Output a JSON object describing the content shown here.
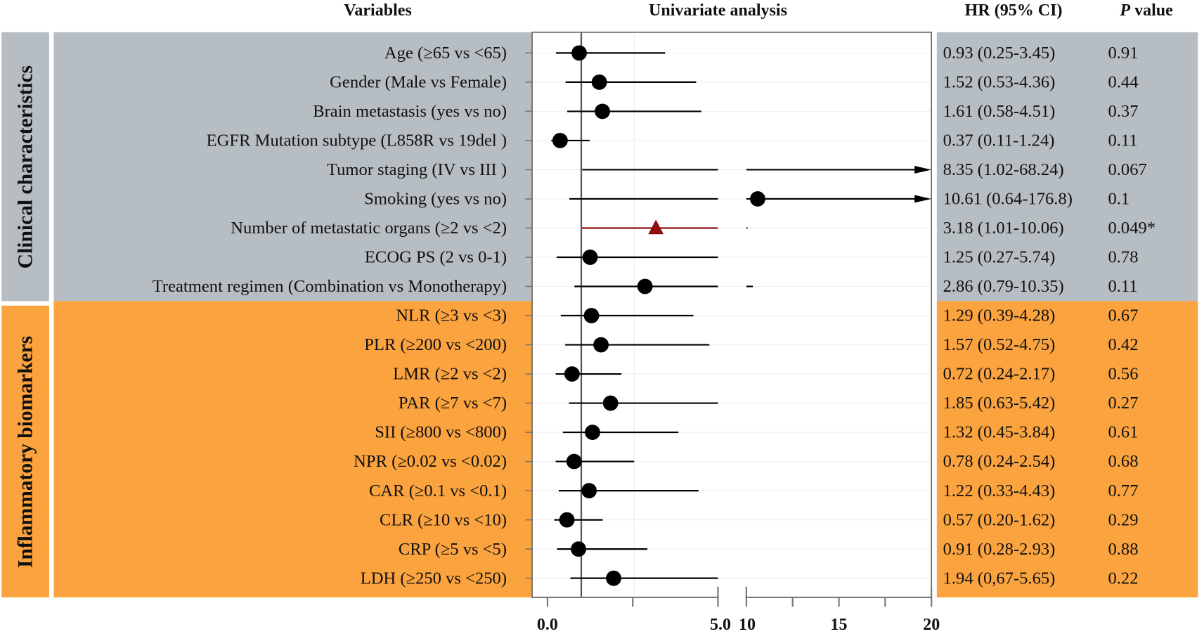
{
  "headers": {
    "variables": "Variables",
    "analysis": "Univariate analysis",
    "hr": "HR (95% CI)",
    "p_italic": "P",
    "p_rest": " value"
  },
  "groups": [
    {
      "name": "Clinical characteristics",
      "color": "#b7bec3"
    },
    {
      "name": "Inflammatory biomarkers",
      "color": "#fba33f"
    }
  ],
  "colors": {
    "point": "#000000",
    "significant": "#8b0f0f",
    "refline": "#555555"
  },
  "chart_data": {
    "type": "forest",
    "title": "Univariate analysis",
    "reference_line": 1,
    "x_axis": {
      "segments": [
        [
          0,
          5
        ],
        [
          10,
          20
        ]
      ],
      "tick_labels": [
        "0.0",
        "5.0",
        "10",
        "15",
        "20"
      ],
      "ticks": [
        0,
        2.5,
        5,
        10,
        12.5,
        15,
        17.5,
        20
      ]
    },
    "rows": [
      {
        "group": 0,
        "label": "Age (≥65 vs <65)",
        "hr": 0.93,
        "lo": 0.25,
        "hi": 3.45,
        "hr_text": "0.93 (0.25-3.45)",
        "p": "0.91",
        "marker": "circle"
      },
      {
        "group": 0,
        "label": "Gender (Male vs Female)",
        "hr": 1.52,
        "lo": 0.53,
        "hi": 4.36,
        "hr_text": "1.52 (0.53-4.36)",
        "p": "0.44",
        "marker": "circle"
      },
      {
        "group": 0,
        "label": "Brain metastasis (yes vs no)",
        "hr": 1.61,
        "lo": 0.58,
        "hi": 4.51,
        "hr_text": "1.61 (0.58-4.51)",
        "p": "0.37",
        "marker": "circle"
      },
      {
        "group": 0,
        "label": "EGFR Mutation subtype (L858R vs 19del )",
        "hr": 0.37,
        "lo": 0.11,
        "hi": 1.24,
        "hr_text": "0.37 (0.11-1.24)",
        "p": "0.11",
        "marker": "circle"
      },
      {
        "group": 0,
        "label": "Tumor staging (IV vs III )",
        "hr": 8.35,
        "lo": 1.02,
        "hi": 68.24,
        "hr_text": "8.35 (1.02-68.24)",
        "p": "0.067",
        "marker": "circle"
      },
      {
        "group": 0,
        "label": "Smoking (yes vs no)",
        "hr": 10.61,
        "lo": 0.64,
        "hi": 176.8,
        "hr_text": "10.61 (0.64-176.8)",
        "p": "0.1",
        "marker": "circle"
      },
      {
        "group": 0,
        "label": "Number of metastatic organs (≥2 vs <2)",
        "hr": 3.18,
        "lo": 1.01,
        "hi": 10.06,
        "hr_text": "3.18 (1.01-10.06)",
        "p": "0.049*",
        "marker": "triangle"
      },
      {
        "group": 0,
        "label": "ECOG PS (2 vs 0-1)",
        "hr": 1.25,
        "lo": 0.27,
        "hi": 5.74,
        "hr_text": "1.25 (0.27-5.74)",
        "p": "0.78",
        "marker": "circle"
      },
      {
        "group": 0,
        "label": "Treatment regimen (Combination vs Monotherapy)",
        "hr": 2.86,
        "lo": 0.79,
        "hi": 10.35,
        "hr_text": "2.86 (0.79-10.35)",
        "p": "0.11",
        "marker": "circle"
      },
      {
        "group": 1,
        "label": "NLR (≥3 vs <3)",
        "hr": 1.29,
        "lo": 0.39,
        "hi": 4.28,
        "hr_text": "1.29 (0.39-4.28)",
        "p": "0.67",
        "marker": "circle"
      },
      {
        "group": 1,
        "label": "PLR (≥200 vs <200)",
        "hr": 1.57,
        "lo": 0.52,
        "hi": 4.75,
        "hr_text": "1.57 (0.52-4.75)",
        "p": "0.42",
        "marker": "circle"
      },
      {
        "group": 1,
        "label": "LMR (≥2 vs <2)",
        "hr": 0.72,
        "lo": 0.24,
        "hi": 2.17,
        "hr_text": "0.72 (0.24-2.17)",
        "p": "0.56",
        "marker": "circle"
      },
      {
        "group": 1,
        "label": "PAR (≥7 vs <7)",
        "hr": 1.85,
        "lo": 0.63,
        "hi": 5.42,
        "hr_text": "1.85 (0.63-5.42)",
        "p": "0.27",
        "marker": "circle"
      },
      {
        "group": 1,
        "label": "SII (≥800 vs <800)",
        "hr": 1.32,
        "lo": 0.45,
        "hi": 3.84,
        "hr_text": "1.32 (0.45-3.84)",
        "p": "0.61",
        "marker": "circle"
      },
      {
        "group": 1,
        "label": "NPR (≥0.02 vs <0.02)",
        "hr": 0.78,
        "lo": 0.24,
        "hi": 2.54,
        "hr_text": "0.78 (0.24-2.54)",
        "p": "0.68",
        "marker": "circle"
      },
      {
        "group": 1,
        "label": "CAR (≥0.1 vs <0.1)",
        "hr": 1.22,
        "lo": 0.33,
        "hi": 4.43,
        "hr_text": "1.22 (0.33-4.43)",
        "p": "0.77",
        "marker": "circle"
      },
      {
        "group": 1,
        "label": "CLR (≥10 vs <10)",
        "hr": 0.57,
        "lo": 0.2,
        "hi": 1.62,
        "hr_text": "0.57 (0.20-1.62)",
        "p": "0.29",
        "marker": "circle"
      },
      {
        "group": 1,
        "label": "CRP (≥5 vs <5)",
        "hr": 0.91,
        "lo": 0.28,
        "hi": 2.93,
        "hr_text": "0.91 (0.28-2.93)",
        "p": "0.88",
        "marker": "circle"
      },
      {
        "group": 1,
        "label": "LDH (≥250 vs <250)",
        "hr": 1.94,
        "lo": 0.67,
        "hi": 5.65,
        "hr_text": "1.94 (0,67-5.65)",
        "p": "0.22",
        "marker": "circle"
      }
    ]
  }
}
